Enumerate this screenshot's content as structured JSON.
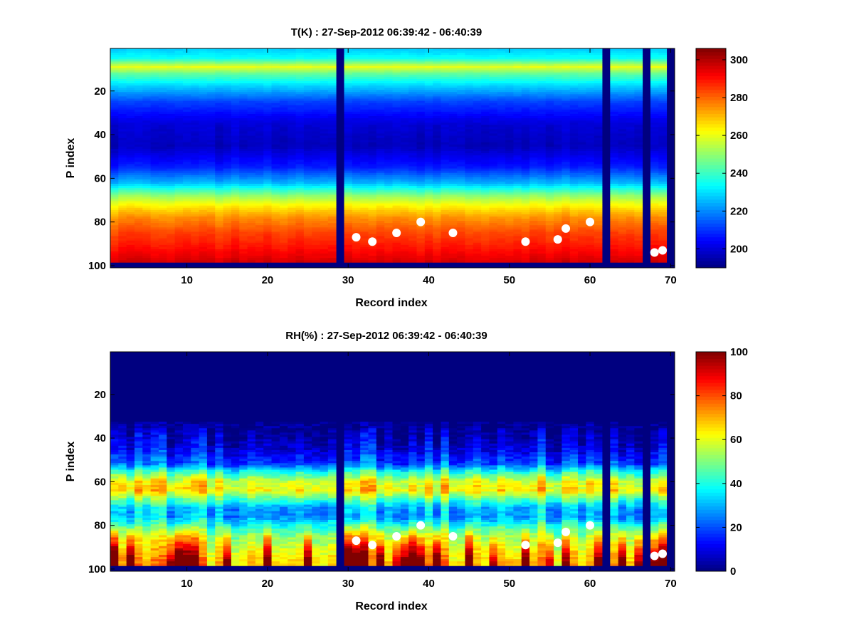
{
  "chart_data": [
    {
      "type": "heatmap",
      "title": "T(K) : 27-Sep-2012 06:39:42 - 06:40:39",
      "xlabel": "Record index",
      "ylabel": "P index",
      "xlim": [
        0.5,
        70.5
      ],
      "ylim": [
        0.5,
        101
      ],
      "xticks": [
        10,
        20,
        30,
        40,
        50,
        60,
        70
      ],
      "yticks": [
        20,
        40,
        60,
        80,
        100
      ],
      "colorbar": {
        "range": [
          190,
          306
        ],
        "ticks": [
          200,
          220,
          240,
          260,
          280,
          300
        ],
        "colormap": "jet"
      },
      "n_records": 70,
      "n_levels": 100,
      "missing_records": [
        29,
        62,
        67,
        70
      ],
      "missing_levels_from": 99,
      "mean_profile": {
        "levels": [
          1,
          5,
          9,
          12,
          18,
          25,
          35,
          45,
          55,
          62,
          68,
          72,
          78,
          85,
          92,
          98
        ],
        "values": [
          228,
          235,
          260,
          245,
          228,
          212,
          200,
          197,
          208,
          225,
          250,
          262,
          275,
          284,
          290,
          296
        ]
      },
      "variability": 4,
      "markers": [
        [
          31,
          87
        ],
        [
          33,
          89
        ],
        [
          36,
          85
        ],
        [
          39,
          80
        ],
        [
          43,
          85
        ],
        [
          52,
          89
        ],
        [
          56,
          88
        ],
        [
          57,
          83
        ],
        [
          60,
          80
        ],
        [
          68,
          94
        ],
        [
          69,
          93
        ]
      ]
    },
    {
      "type": "heatmap",
      "title": "RH(%) : 27-Sep-2012 06:39:42 - 06:40:39",
      "xlabel": "Record index",
      "ylabel": "P index",
      "xlim": [
        0.5,
        70.5
      ],
      "ylim": [
        0.5,
        101
      ],
      "xticks": [
        10,
        20,
        30,
        40,
        50,
        60,
        70
      ],
      "yticks": [
        20,
        40,
        60,
        80,
        100
      ],
      "colorbar": {
        "range": [
          0,
          100
        ],
        "ticks": [
          0,
          20,
          40,
          60,
          80,
          100
        ],
        "colormap": "jet"
      },
      "n_records": 70,
      "n_levels": 100,
      "missing_records": [
        29,
        62,
        67,
        70
      ],
      "missing_levels_from": 99,
      "mean_profile": {
        "levels": [
          1,
          32,
          38,
          45,
          52,
          56,
          60,
          64,
          68,
          72,
          76,
          80,
          85,
          90,
          95,
          98
        ],
        "values": [
          0,
          1,
          6,
          12,
          22,
          45,
          62,
          66,
          48,
          32,
          30,
          42,
          55,
          62,
          68,
          70
        ]
      },
      "variability": 18,
      "markers": [
        [
          31,
          87
        ],
        [
          33,
          89
        ],
        [
          36,
          85
        ],
        [
          39,
          80
        ],
        [
          43,
          85
        ],
        [
          52,
          89
        ],
        [
          56,
          88
        ],
        [
          57,
          83
        ],
        [
          60,
          80
        ],
        [
          68,
          94
        ],
        [
          69,
          93
        ]
      ]
    }
  ]
}
